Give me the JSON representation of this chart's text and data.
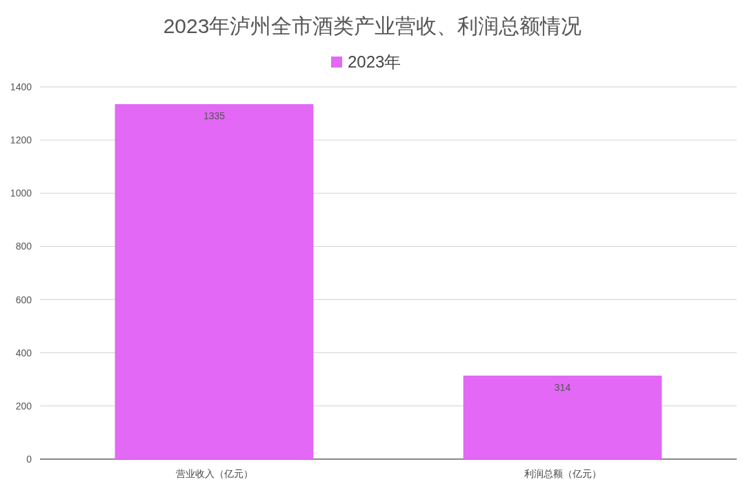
{
  "chart_data": {
    "type": "bar",
    "title": "2023年泸州全市酒类产业营收、利润总额情况",
    "categories": [
      "营业收入（亿元）",
      "利润总额（亿元）"
    ],
    "series": [
      {
        "name": "2023年",
        "color": "#e368f6",
        "values": [
          1335,
          314
        ]
      }
    ],
    "ylim": [
      0,
      1400
    ],
    "yticks": [
      0,
      200,
      400,
      600,
      800,
      1000,
      1200,
      1400
    ],
    "grid": "y",
    "legend": "top",
    "data_labels": true
  }
}
